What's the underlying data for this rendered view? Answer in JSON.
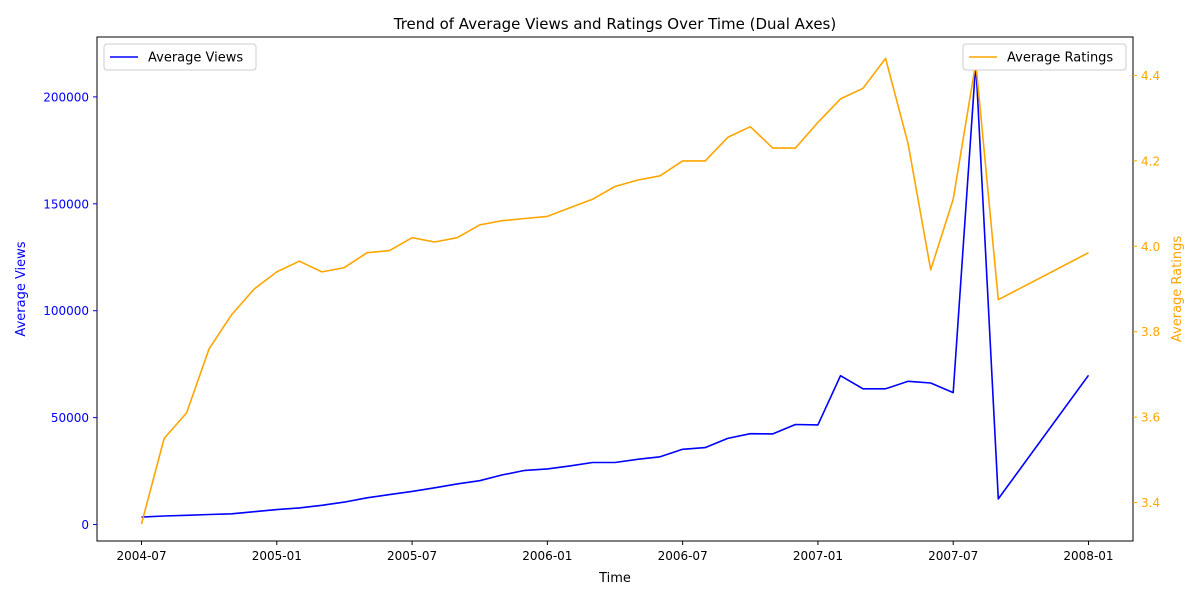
{
  "chart_data": {
    "type": "line",
    "title": "Trend of Average Views and Ratings Over Time (Dual Axes)",
    "xlabel": "Time",
    "x": [
      "2004-07",
      "2004-08",
      "2004-09",
      "2004-10",
      "2004-11",
      "2004-12",
      "2005-01",
      "2005-02",
      "2005-03",
      "2005-04",
      "2005-05",
      "2005-06",
      "2005-07",
      "2005-08",
      "2005-09",
      "2005-10",
      "2005-11",
      "2005-12",
      "2006-01",
      "2006-02",
      "2006-03",
      "2006-04",
      "2006-05",
      "2006-06",
      "2006-07",
      "2006-08",
      "2006-09",
      "2006-10",
      "2006-11",
      "2006-12",
      "2007-01",
      "2007-02",
      "2007-03",
      "2007-04",
      "2007-05",
      "2007-06",
      "2007-07",
      "2007-08",
      "2007-09",
      "2008-01"
    ],
    "x_ticks": [
      "2004-07",
      "2005-01",
      "2005-07",
      "2006-01",
      "2006-07",
      "2007-01",
      "2007-07",
      "2008-01"
    ],
    "series": [
      {
        "name": "Average Views",
        "axis": "left",
        "color": "#0000ff",
        "values": [
          3500,
          4000,
          4300,
          4700,
          5000,
          6000,
          7000,
          7800,
          9000,
          10500,
          12500,
          14000,
          15500,
          17200,
          19000,
          20500,
          23200,
          25300,
          26000,
          27400,
          29000,
          29000,
          30500,
          31700,
          35200,
          36000,
          40300,
          42500,
          42400,
          46800,
          46600,
          69600,
          63500,
          63500,
          67000,
          66200,
          61700,
          216000,
          12000,
          69800
        ]
      },
      {
        "name": "Average Ratings",
        "axis": "right",
        "color": "#ffa500",
        "values": [
          3.35,
          3.55,
          3.61,
          3.76,
          3.84,
          3.9,
          3.94,
          3.965,
          3.94,
          3.95,
          3.985,
          3.99,
          4.02,
          4.01,
          4.02,
          4.05,
          4.06,
          4.065,
          4.07,
          4.09,
          4.11,
          4.14,
          4.155,
          4.165,
          4.2,
          4.2,
          4.255,
          4.28,
          4.23,
          4.23,
          4.29,
          4.345,
          4.37,
          4.44,
          4.24,
          3.945,
          4.11,
          4.43,
          3.875,
          3.985
        ]
      }
    ],
    "left_axis": {
      "label": "Average Views",
      "ticks": [
        0,
        50000,
        100000,
        150000,
        200000
      ],
      "ylim": [
        -7700,
        228000
      ],
      "color": "#0000ff"
    },
    "right_axis": {
      "label": "Average Ratings",
      "ticks": [
        3.4,
        3.6,
        3.8,
        4.0,
        4.2,
        4.4
      ],
      "ylim": [
        3.31,
        4.49
      ],
      "color": "#ffa500"
    },
    "legends": [
      {
        "series": "Average Views",
        "placement": "upper-left"
      },
      {
        "series": "Average Ratings",
        "placement": "upper-right"
      }
    ],
    "grid": false
  }
}
